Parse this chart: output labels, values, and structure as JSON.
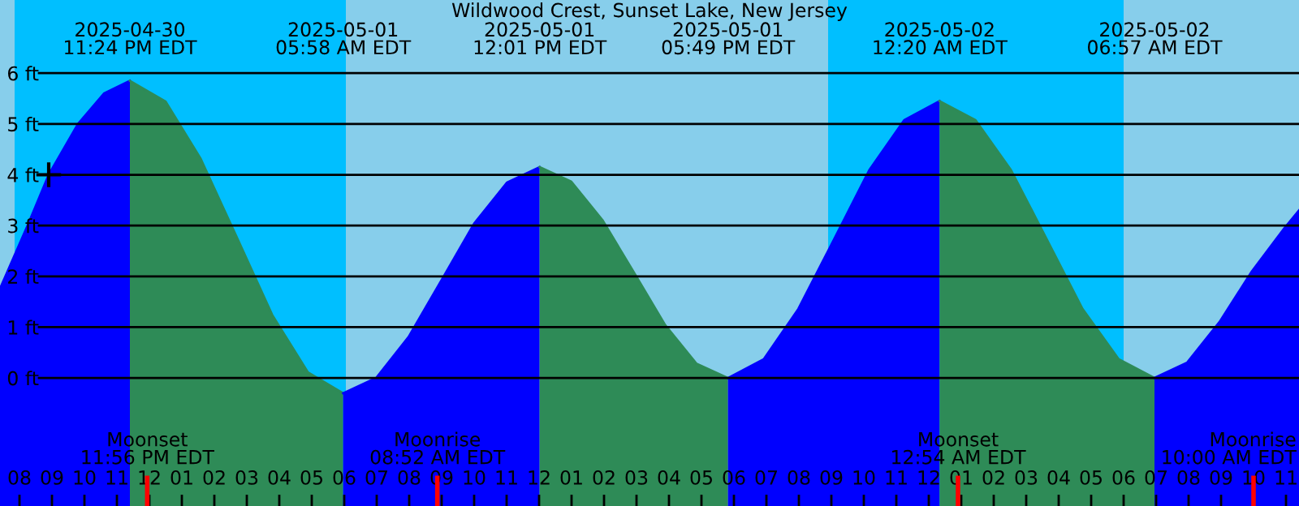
{
  "chart_data": {
    "type": "area",
    "title": "Wildwood Crest, Sunset Lake, New Jersey",
    "xlim": [
      "2025-04-30T19:24",
      "2025-05-02T11:24"
    ],
    "xticks": [
      {
        "value": "2025-04-30T20:00",
        "label": "08"
      },
      {
        "value": "2025-04-30T21:00",
        "label": "09"
      },
      {
        "value": "2025-04-30T22:00",
        "label": "10"
      },
      {
        "value": "2025-04-30T23:00",
        "label": "11"
      },
      {
        "value": "2025-05-01T00:00",
        "label": "12"
      },
      {
        "value": "2025-05-01T01:00",
        "label": "01"
      },
      {
        "value": "2025-05-01T02:00",
        "label": "02"
      },
      {
        "value": "2025-05-01T03:00",
        "label": "03"
      },
      {
        "value": "2025-05-01T04:00",
        "label": "04"
      },
      {
        "value": "2025-05-01T05:00",
        "label": "05"
      },
      {
        "value": "2025-05-01T06:00",
        "label": "06"
      },
      {
        "value": "2025-05-01T07:00",
        "label": "07"
      },
      {
        "value": "2025-05-01T08:00",
        "label": "08"
      },
      {
        "value": "2025-05-01T09:00",
        "label": "09"
      },
      {
        "value": "2025-05-01T10:00",
        "label": "10"
      },
      {
        "value": "2025-05-01T11:00",
        "label": "11"
      },
      {
        "value": "2025-05-01T12:00",
        "label": "12"
      },
      {
        "value": "2025-05-01T13:00",
        "label": "01"
      },
      {
        "value": "2025-05-01T14:00",
        "label": "02"
      },
      {
        "value": "2025-05-01T15:00",
        "label": "03"
      },
      {
        "value": "2025-05-01T16:00",
        "label": "04"
      },
      {
        "value": "2025-05-01T17:00",
        "label": "05"
      },
      {
        "value": "2025-05-01T18:00",
        "label": "06"
      },
      {
        "value": "2025-05-01T19:00",
        "label": "07"
      },
      {
        "value": "2025-05-01T20:00",
        "label": "08"
      },
      {
        "value": "2025-05-01T21:00",
        "label": "09"
      },
      {
        "value": "2025-05-01T22:00",
        "label": "10"
      },
      {
        "value": "2025-05-01T23:00",
        "label": "11"
      },
      {
        "value": "2025-05-02T00:00",
        "label": "12"
      },
      {
        "value": "2025-05-02T01:00",
        "label": "01"
      },
      {
        "value": "2025-05-02T02:00",
        "label": "02"
      },
      {
        "value": "2025-05-02T03:00",
        "label": "03"
      },
      {
        "value": "2025-05-02T04:00",
        "label": "04"
      },
      {
        "value": "2025-05-02T05:00",
        "label": "05"
      },
      {
        "value": "2025-05-02T06:00",
        "label": "06"
      },
      {
        "value": "2025-05-02T07:00",
        "label": "07"
      },
      {
        "value": "2025-05-02T08:00",
        "label": "08"
      },
      {
        "value": "2025-05-02T09:00",
        "label": "09"
      },
      {
        "value": "2025-05-02T10:00",
        "label": "10"
      },
      {
        "value": "2025-05-02T11:00",
        "label": "11"
      }
    ],
    "ylim": [
      -2.52,
      7.44
    ],
    "yticks": [
      {
        "value": 0,
        "label": "0 ft"
      },
      {
        "value": 1,
        "label": "1 ft"
      },
      {
        "value": 2,
        "label": "2 ft"
      },
      {
        "value": 3,
        "label": "3 ft"
      },
      {
        "value": 4,
        "label": "4 ft"
      },
      {
        "value": 5,
        "label": "5 ft"
      },
      {
        "value": 6,
        "label": "6 ft"
      }
    ],
    "grid": "y",
    "series": [
      {
        "color": "#0000ff",
        "x": [
          "2025-04-30T19:24",
          "2025-04-30T20:15",
          "2025-04-30T20:54",
          "2025-04-30T21:48",
          "2025-04-30T22:36",
          "2025-04-30T23:24"
        ],
        "values": [
          1.76,
          3.0,
          4.0,
          5.0,
          5.6,
          5.85
        ]
      },
      {
        "color": "#2e8b57",
        "x": [
          "2025-04-30T23:24",
          "2025-05-01T00:30",
          "2025-05-01T01:35",
          "2025-05-01T02:41",
          "2025-05-01T03:47",
          "2025-05-01T04:53",
          "2025-05-01T05:58"
        ],
        "values": [
          5.85,
          5.44,
          4.31,
          2.78,
          1.24,
          0.11,
          -0.3
        ]
      },
      {
        "color": "#0000ff",
        "x": [
          "2025-05-01T05:58",
          "2025-05-01T06:59",
          "2025-05-01T07:59",
          "2025-05-01T09:00",
          "2025-05-01T10:00",
          "2025-05-01T11:01",
          "2025-05-01T12:01"
        ],
        "values": [
          -0.3,
          0.0,
          0.81,
          1.93,
          3.04,
          3.85,
          4.15
        ]
      },
      {
        "color": "#2e8b57",
        "x": [
          "2025-05-01T12:01",
          "2025-05-01T12:59",
          "2025-05-01T13:57",
          "2025-05-01T14:55",
          "2025-05-01T15:53",
          "2025-05-01T16:51",
          "2025-05-01T17:49"
        ],
        "values": [
          4.15,
          3.87,
          3.11,
          2.08,
          1.04,
          0.28,
          0.0
        ]
      },
      {
        "color": "#0000ff",
        "x": [
          "2025-05-01T17:49",
          "2025-05-01T18:55",
          "2025-05-01T19:59",
          "2025-05-01T21:05",
          "2025-05-01T22:10",
          "2025-05-01T23:15",
          "2025-05-02T00:20"
        ],
        "values": [
          0.0,
          0.37,
          1.36,
          2.73,
          4.09,
          5.08,
          5.45
        ]
      },
      {
        "color": "#2e8b57",
        "x": [
          "2025-05-02T00:20",
          "2025-05-02T01:26",
          "2025-05-02T02:32",
          "2025-05-02T03:38",
          "2025-05-02T04:44",
          "2025-05-02T05:51",
          "2025-05-02T06:57"
        ],
        "values": [
          5.45,
          5.08,
          4.09,
          2.73,
          1.36,
          0.37,
          0.0
        ]
      },
      {
        "color": "#0000ff",
        "x": [
          "2025-05-02T06:57",
          "2025-05-02T07:57",
          "2025-05-02T08:57",
          "2025-05-02T09:57",
          "2025-05-02T10:57",
          "2025-05-02T11:24"
        ],
        "values": [
          0.0,
          0.3,
          1.1,
          2.1,
          2.95,
          3.3
        ]
      },
      {
        "type": "scatter",
        "color": "#000000",
        "marker": "cross",
        "x": [
          "2025-04-30T20:54"
        ],
        "values": [
          4.0
        ]
      }
    ],
    "bands": [
      {
        "axis": "x",
        "from": "2025-04-30T19:51",
        "to": "2025-05-01T06:03",
        "color": "#00bfff"
      },
      {
        "axis": "x",
        "from": "2025-05-01T20:54",
        "to": "2025-05-02T06:00",
        "color": "#00bfff"
      }
    ],
    "ref_lines": [
      {
        "axis": "x",
        "value": "2025-04-30T23:56",
        "label": "Moonset\n11:56 PM EDT",
        "color": "#ff0000"
      },
      {
        "axis": "x",
        "value": "2025-05-01T08:52",
        "label": "Moonrise\n08:52 AM EDT",
        "color": "#ff0000"
      },
      {
        "axis": "x",
        "value": "2025-05-02T00:54",
        "label": "Moonset\n12:54 AM EDT",
        "color": "#ff0000"
      },
      {
        "axis": "x",
        "value": "2025-05-02T10:00",
        "label": "Moonrise\n10:00 AM EDT",
        "color": "#ff0000"
      }
    ],
    "annotations": [
      "2025-04-30\n11:24 PM EDT",
      "2025-05-01\n05:58 AM EDT",
      "2025-05-01\n12:01 PM EDT",
      "2025-05-01\n05:49 PM EDT",
      "2025-05-02\n12:20 AM EDT",
      "2025-05-02\n06:57 AM EDT"
    ]
  }
}
